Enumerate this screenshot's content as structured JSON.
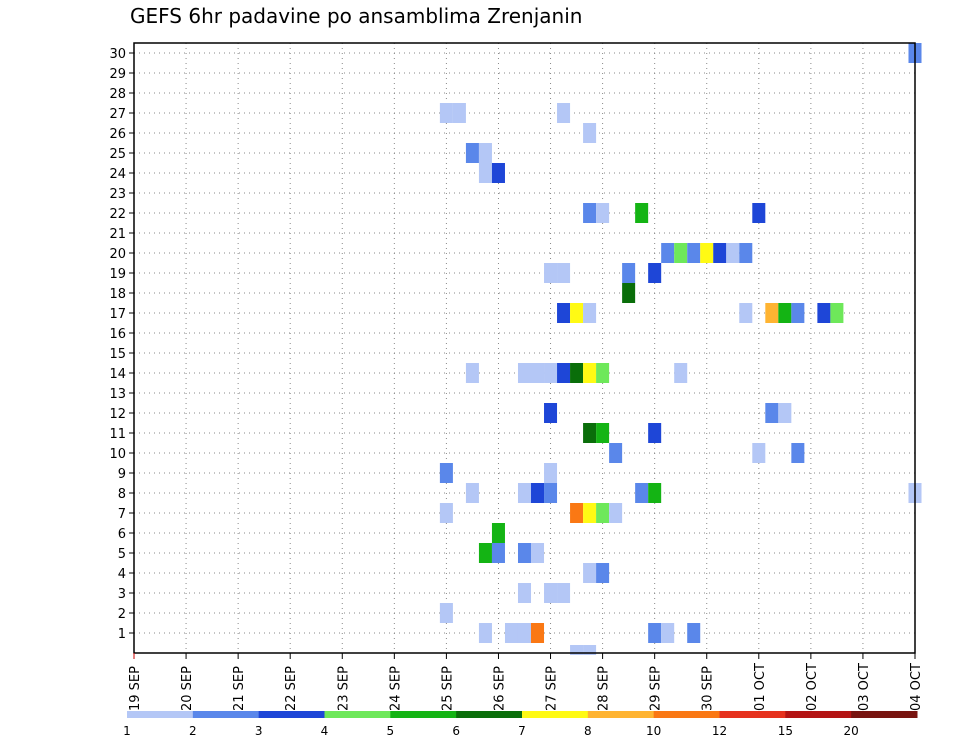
{
  "chart_data": {
    "type": "heatmap",
    "title": "GEFS 6hr padavine po ansamblima Zrenjanin",
    "xlabel": "",
    "ylabel": "",
    "x_ticks": [
      "19 SEP",
      "20 SEP",
      "21 SEP",
      "22 SEP",
      "23 SEP",
      "24 SEP",
      "25 SEP",
      "26 SEP",
      "27 SEP",
      "28 SEP",
      "29 SEP",
      "30 SEP",
      "01 OCT",
      "02 OCT",
      "03 OCT",
      "04 OCT"
    ],
    "y_ticks": [
      1,
      2,
      3,
      4,
      5,
      6,
      7,
      8,
      9,
      10,
      11,
      12,
      13,
      14,
      15,
      16,
      17,
      18,
      19,
      20,
      21,
      22,
      23,
      24,
      25,
      26,
      27,
      28,
      29,
      30
    ],
    "grid": true,
    "legend": {
      "placement": "bottom",
      "labels": [
        "1",
        "2",
        "3",
        "4",
        "5",
        "6",
        "7",
        "8",
        "10",
        "12",
        "15",
        "20"
      ],
      "colors": [
        "#b4c7f6",
        "#5a87ea",
        "#1e46d7",
        "#6ee85a",
        "#14b414",
        "#0a6e0a",
        "#fffa14",
        "#ffb432",
        "#fa7814",
        "#e6321e",
        "#b41414",
        "#781410"
      ]
    },
    "cell_unit": "member x 6h step (values in mm)",
    "cells": [
      {
        "member": 30,
        "time": 60,
        "value": 2
      },
      {
        "member": 27,
        "time": 24,
        "value": 1
      },
      {
        "member": 27,
        "time": 25,
        "value": 1
      },
      {
        "member": 27,
        "time": 33,
        "value": 1
      },
      {
        "member": 26,
        "time": 35,
        "value": 1
      },
      {
        "member": 25,
        "time": 26,
        "value": 2
      },
      {
        "member": 25,
        "time": 27,
        "value": 1
      },
      {
        "member": 24,
        "time": 27,
        "value": 1
      },
      {
        "member": 24,
        "time": 28,
        "value": 3
      },
      {
        "member": 22,
        "time": 35,
        "value": 2
      },
      {
        "member": 22,
        "time": 36,
        "value": 1
      },
      {
        "member": 22,
        "time": 39,
        "value": 5
      },
      {
        "member": 22,
        "time": 48,
        "value": 3
      },
      {
        "member": 20,
        "time": 41,
        "value": 2
      },
      {
        "member": 20,
        "time": 42,
        "value": 4
      },
      {
        "member": 20,
        "time": 43,
        "value": 2
      },
      {
        "member": 20,
        "time": 44,
        "value": 7
      },
      {
        "member": 20,
        "time": 45,
        "value": 3
      },
      {
        "member": 20,
        "time": 46,
        "value": 1
      },
      {
        "member": 20,
        "time": 47,
        "value": 2
      },
      {
        "member": 19,
        "time": 32,
        "value": 1
      },
      {
        "member": 19,
        "time": 33,
        "value": 1
      },
      {
        "member": 19,
        "time": 38,
        "value": 2
      },
      {
        "member": 19,
        "time": 40,
        "value": 3
      },
      {
        "member": 18,
        "time": 38,
        "value": 6
      },
      {
        "member": 17,
        "time": 33,
        "value": 3
      },
      {
        "member": 17,
        "time": 34,
        "value": 7
      },
      {
        "member": 17,
        "time": 35,
        "value": 1
      },
      {
        "member": 17,
        "time": 47,
        "value": 1
      },
      {
        "member": 17,
        "time": 49,
        "value": 8
      },
      {
        "member": 17,
        "time": 50,
        "value": 5
      },
      {
        "member": 17,
        "time": 51,
        "value": 2
      },
      {
        "member": 17,
        "time": 53,
        "value": 3
      },
      {
        "member": 17,
        "time": 54,
        "value": 4
      },
      {
        "member": 14,
        "time": 26,
        "value": 1
      },
      {
        "member": 14,
        "time": 30,
        "value": 1
      },
      {
        "member": 14,
        "time": 31,
        "value": 1
      },
      {
        "member": 14,
        "time": 32,
        "value": 1
      },
      {
        "member": 14,
        "time": 33,
        "value": 3
      },
      {
        "member": 14,
        "time": 34,
        "value": 6
      },
      {
        "member": 14,
        "time": 35,
        "value": 7
      },
      {
        "member": 14,
        "time": 36,
        "value": 4
      },
      {
        "member": 14,
        "time": 42,
        "value": 1
      },
      {
        "member": 12,
        "time": 32,
        "value": 3
      },
      {
        "member": 12,
        "time": 49,
        "value": 2
      },
      {
        "member": 12,
        "time": 50,
        "value": 1
      },
      {
        "member": 11,
        "time": 35,
        "value": 6
      },
      {
        "member": 11,
        "time": 36,
        "value": 5
      },
      {
        "member": 11,
        "time": 40,
        "value": 3
      },
      {
        "member": 10,
        "time": 37,
        "value": 2
      },
      {
        "member": 10,
        "time": 48,
        "value": 1
      },
      {
        "member": 10,
        "time": 51,
        "value": 2
      },
      {
        "member": 9,
        "time": 24,
        "value": 2
      },
      {
        "member": 9,
        "time": 32,
        "value": 1
      },
      {
        "member": 8,
        "time": 26,
        "value": 1
      },
      {
        "member": 8,
        "time": 30,
        "value": 1
      },
      {
        "member": 8,
        "time": 31,
        "value": 3
      },
      {
        "member": 8,
        "time": 32,
        "value": 2
      },
      {
        "member": 8,
        "time": 39,
        "value": 2
      },
      {
        "member": 8,
        "time": 40,
        "value": 5
      },
      {
        "member": 8,
        "time": 60,
        "value": 1
      },
      {
        "member": 7,
        "time": 24,
        "value": 1
      },
      {
        "member": 7,
        "time": 34,
        "value": 10
      },
      {
        "member": 7,
        "time": 35,
        "value": 7
      },
      {
        "member": 7,
        "time": 36,
        "value": 4
      },
      {
        "member": 7,
        "time": 37,
        "value": 1
      },
      {
        "member": 6,
        "time": 28,
        "value": 5
      },
      {
        "member": 5,
        "time": 27,
        "value": 5
      },
      {
        "member": 5,
        "time": 28,
        "value": 2
      },
      {
        "member": 5,
        "time": 30,
        "value": 2
      },
      {
        "member": 5,
        "time": 31,
        "value": 1
      },
      {
        "member": 4,
        "time": 35,
        "value": 1
      },
      {
        "member": 4,
        "time": 36,
        "value": 2
      },
      {
        "member": 3,
        "time": 30,
        "value": 1
      },
      {
        "member": 3,
        "time": 32,
        "value": 1
      },
      {
        "member": 3,
        "time": 33,
        "value": 1
      },
      {
        "member": 2,
        "time": 24,
        "value": 1
      },
      {
        "member": 1,
        "time": 27,
        "value": 1
      },
      {
        "member": 1,
        "time": 29,
        "value": 1
      },
      {
        "member": 1,
        "time": 30,
        "value": 1
      },
      {
        "member": 1,
        "time": 31,
        "value": 10
      },
      {
        "member": 1,
        "time": 40,
        "value": 2
      },
      {
        "member": 1,
        "time": 41,
        "value": 1
      },
      {
        "member": 1,
        "time": 43,
        "value": 2
      },
      {
        "member": 0,
        "time": 34,
        "value": 1
      },
      {
        "member": 0,
        "time": 35,
        "value": 1
      }
    ]
  }
}
